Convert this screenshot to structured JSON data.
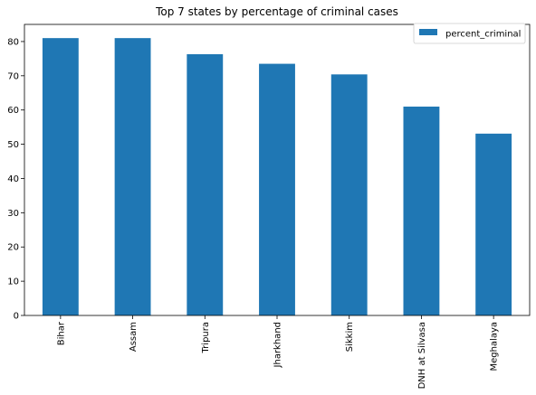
{
  "chart_data": {
    "type": "bar",
    "title": "Top 7 states by percentage of criminal cases",
    "xlabel": "",
    "ylabel": "",
    "categories": [
      "Bihar",
      "Assam",
      "Tripura",
      "Jharkhand",
      "Sikkim",
      "DNH at Silvasa",
      "Meghalaya"
    ],
    "series": [
      {
        "name": "percent_criminal",
        "values": [
          81.0,
          81.0,
          76.3,
          73.5,
          70.4,
          61.0,
          53.1
        ],
        "color": "#1f77b4"
      }
    ],
    "ylim": [
      0,
      85
    ],
    "yticks": [
      0,
      10,
      20,
      30,
      40,
      50,
      60,
      70,
      80
    ],
    "grid": false,
    "legend_position": "top-right"
  }
}
